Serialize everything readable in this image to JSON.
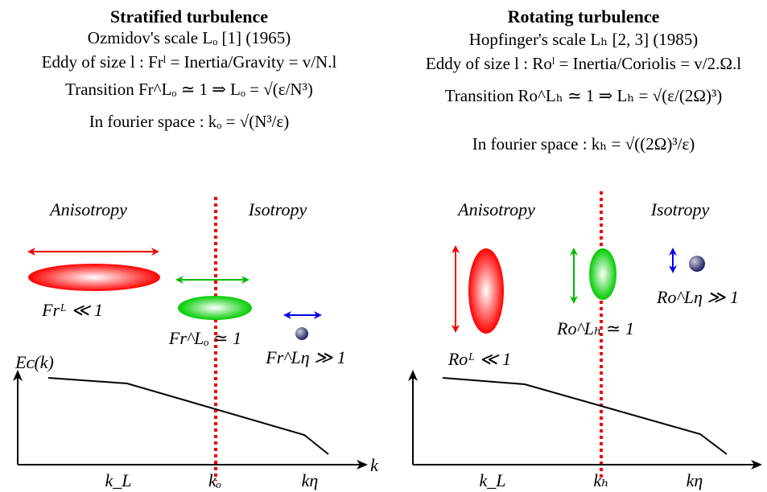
{
  "left": {
    "title": "Stratified turbulence",
    "lines": [
      "Ozmidov's scale Lₒ [1] (1965)",
      "Eddy of size l : Frˡ = Inertia/Gravity = v/N.l",
      "Transition Fr^Lₒ ≃ 1 ⇒ Lₒ = √(ε/N³)",
      "In fourier space : kₒ = √(N³/ε)"
    ],
    "regions": [
      "Anisotropy",
      "Isotropy"
    ],
    "eddies": [
      "Frᴸ ≪ 1",
      "Fr^Lₒ ≃ 1",
      "Fr^Lη ≫ 1"
    ],
    "y_axis": "Eᴄ(k)",
    "x_axis": "k",
    "x_labels": [
      "k_L",
      "kₒ",
      "kη"
    ]
  },
  "right": {
    "title": "Rotating turbulence",
    "lines": [
      "Hopfinger's scale Lₕ [2, 3] (1985)",
      "Eddy of size l : Roˡ = Inertia/Coriolis = v/2.Ω.l",
      "Transition Ro^Lₕ ≃ 1 ⇒ Lₕ = √(ε/(2Ω)³)",
      "In fourier space : kₕ = √((2Ω)³/ε)"
    ],
    "regions": [
      "Anisotropy",
      "Isotropy"
    ],
    "eddies": [
      "Roᴸ ≪ 1",
      "Ro^Lₕ ≃ 1",
      "Ro^Lη ≫ 1"
    ],
    "x_labels": [
      "k_L",
      "kₕ",
      "kη"
    ]
  }
}
